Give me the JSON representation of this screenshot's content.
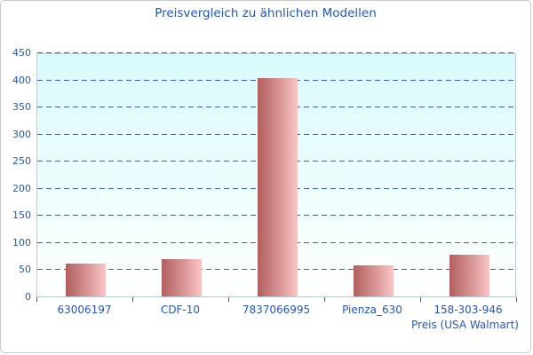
{
  "title": "Preisvergleich zu ähnlichen Modellen",
  "chart_data": {
    "type": "bar",
    "title": "Preisvergleich zu ähnlichen Modellen",
    "categories": [
      "63006197",
      "CDF-10",
      "7837066995",
      "Pienza_630",
      "158-303-946"
    ],
    "values": [
      60,
      68,
      403,
      57,
      77
    ],
    "xlabel": "Preis (USA Walmart)",
    "ylabel": "",
    "ylim": [
      0,
      450
    ],
    "ytick_step": 50,
    "yticks": [
      0,
      50,
      100,
      150,
      200,
      250,
      300,
      350,
      400,
      450
    ],
    "grid": "horizontal-dashed",
    "legend": "none",
    "colors": {
      "text": "#2255cc",
      "gridline": "#3a5fc8",
      "bar_gradient_start": "#b25e5e",
      "bar_gradient_end": "#fbc6c6",
      "plot_bg_top": "#d9fafb",
      "plot_bg_bottom": "#ffffff",
      "plot_border": "#b9cbd8",
      "frame_border": "#c9c9c9"
    }
  }
}
